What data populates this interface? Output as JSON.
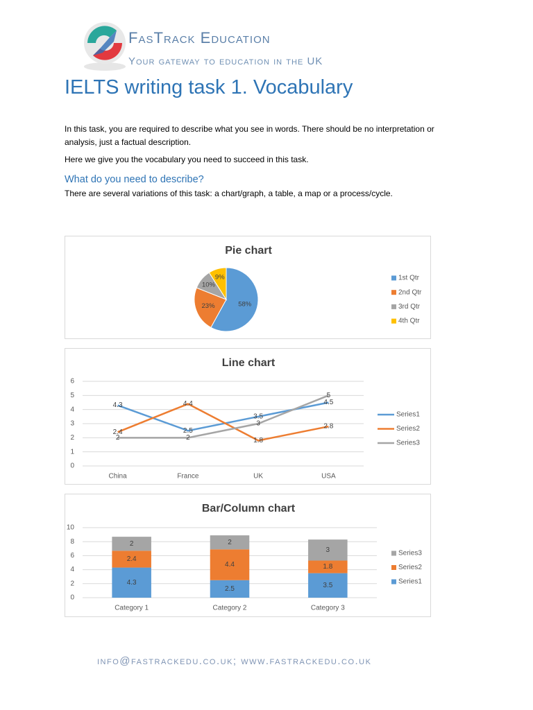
{
  "header": {
    "brand": "FasTrack Education",
    "tagline": "Your gateway to education in the UK"
  },
  "title": "IELTS writing task 1. Vocabulary",
  "paragraphs": [
    "In this task, you are required to describe what you see in words. There should be no interpretation or analysis, just a factual description.",
    "Here we give you the vocabulary you need to succeed in this task."
  ],
  "section": {
    "heading": "What do you need to describe?",
    "text": "There are several variations of this task: a chart/graph, a table, a map or a process/cycle."
  },
  "footer": "info@fastrackedu.co.uk; www.fastrackedu.co.uk",
  "chart_data": [
    {
      "type": "pie",
      "title": "Pie chart",
      "categories": [
        "1st Qtr",
        "2nd Qtr",
        "3rd Qtr",
        "4th Qtr"
      ],
      "values": [
        58,
        23,
        10,
        9
      ],
      "value_labels": [
        "58%",
        "23%",
        "10%",
        "9%"
      ],
      "colors": [
        "#5b9bd5",
        "#ed7d31",
        "#a5a5a5",
        "#ffc000"
      ],
      "legend": "right"
    },
    {
      "type": "line",
      "title": "Line chart",
      "categories": [
        "China",
        "France",
        "UK",
        "USA"
      ],
      "series": [
        {
          "name": "Series1",
          "color": "#5b9bd5",
          "values": [
            4.3,
            2.5,
            3.5,
            4.5
          ]
        },
        {
          "name": "Series2",
          "color": "#ed7d31",
          "values": [
            2.4,
            4.4,
            1.8,
            2.8
          ]
        },
        {
          "name": "Series3",
          "color": "#a5a5a5",
          "values": [
            2,
            2,
            3,
            5
          ]
        }
      ],
      "ylim": [
        0,
        6
      ],
      "yticks": [
        0,
        1,
        2,
        3,
        4,
        5,
        6
      ],
      "grid": true,
      "legend": "right"
    },
    {
      "type": "bar",
      "stacked": true,
      "title": "Bar/Column chart",
      "categories": [
        "Category 1",
        "Category 2",
        "Category 3"
      ],
      "series": [
        {
          "name": "Series1",
          "color": "#5b9bd5",
          "values": [
            4.3,
            2.5,
            3.5
          ]
        },
        {
          "name": "Series2",
          "color": "#ed7d31",
          "values": [
            2.4,
            4.4,
            1.8
          ]
        },
        {
          "name": "Series3",
          "color": "#a5a5a5",
          "values": [
            2,
            2,
            3
          ]
        }
      ],
      "ylim": [
        0,
        10
      ],
      "yticks": [
        0,
        2,
        4,
        6,
        8,
        10
      ],
      "grid": true,
      "legend": "right"
    }
  ]
}
